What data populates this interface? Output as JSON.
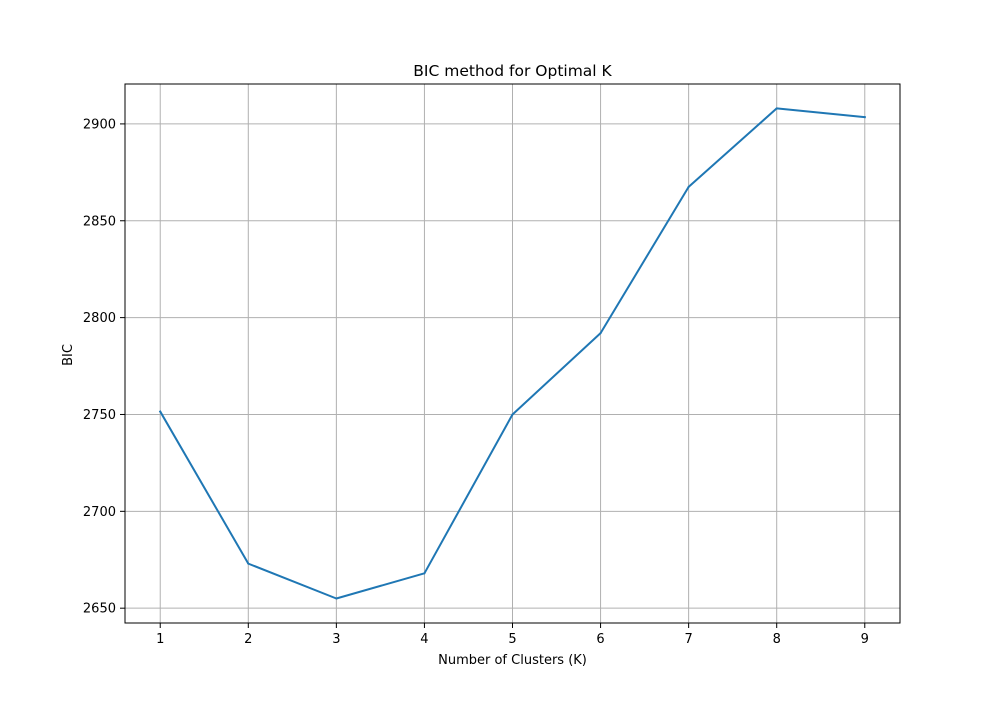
{
  "chart_data": {
    "type": "line",
    "title": "BIC method for Optimal K",
    "xlabel": "Number of Clusters (K)",
    "ylabel": "BIC",
    "x": [
      1,
      2,
      3,
      4,
      5,
      6,
      7,
      8,
      9
    ],
    "series": [
      {
        "values": [
          2751.5,
          2673,
          2655,
          2668,
          2750,
          2792,
          2867.5,
          2908,
          2903.5
        ],
        "color": "#1f77b4"
      }
    ],
    "xlim": [
      0.6,
      9.4
    ],
    "ylim": [
      2642.35,
      2920.6
    ],
    "xticks": [
      1,
      2,
      3,
      4,
      5,
      6,
      7,
      8,
      9
    ],
    "yticks": [
      2650,
      2700,
      2750,
      2800,
      2850,
      2900
    ],
    "grid": true,
    "legend": "none"
  }
}
